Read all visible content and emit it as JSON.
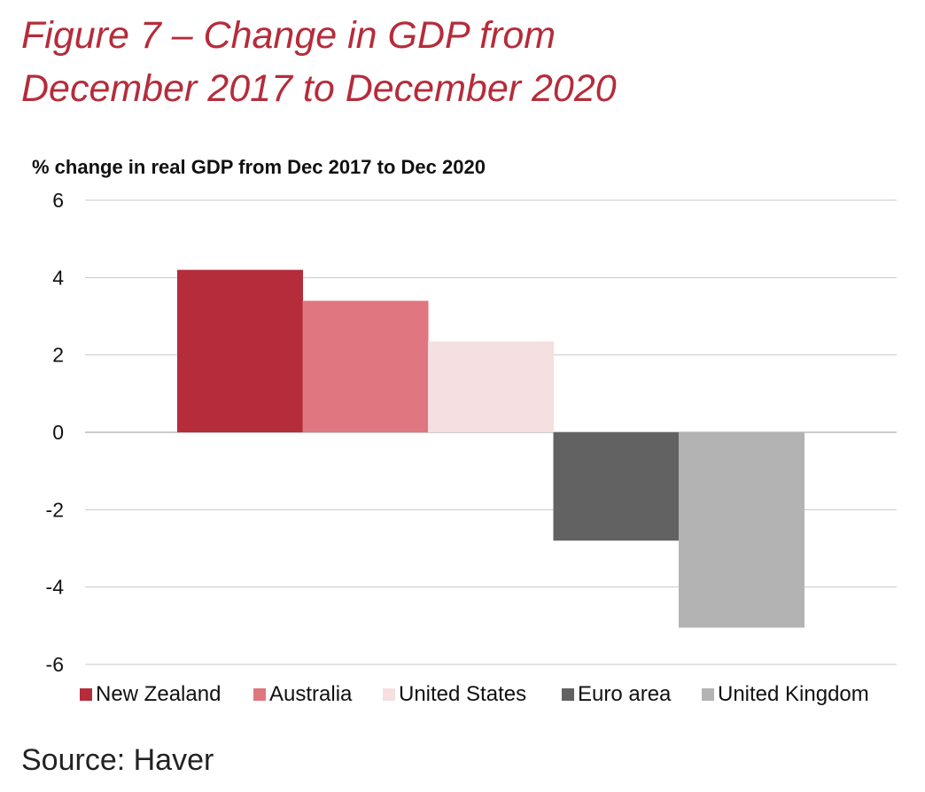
{
  "figure": {
    "title_line1": "Figure 7 – Change in GDP from",
    "title_line2": "December 2017 to December 2020"
  },
  "source": "Source: Haver",
  "chart_data": {
    "type": "bar",
    "title": "",
    "ylabel": "% change in real GDP from Dec 2017 to Dec 2020",
    "xlabel": "",
    "categories": [
      "New Zealand",
      "Australia",
      "United States",
      "Euro area",
      "United Kingdom"
    ],
    "values": [
      4.2,
      3.4,
      2.35,
      -2.8,
      -5.05
    ],
    "colors": [
      "#b52c3a",
      "#e0767f",
      "#f5dfe1",
      "#626262",
      "#b3b3b3"
    ],
    "ylim": [
      -6,
      6
    ],
    "yticks": [
      6,
      4,
      2,
      0,
      -2,
      -4,
      -6
    ],
    "grid": true,
    "legend": "bottom"
  }
}
